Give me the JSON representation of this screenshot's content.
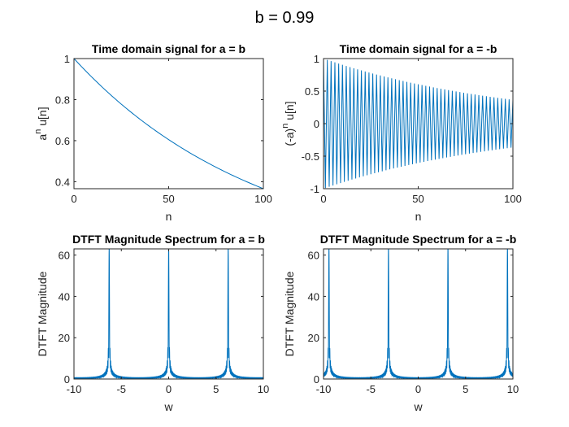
{
  "figure": {
    "title": "b = 0.99",
    "line_color": "#0072BD"
  },
  "chart_data": [
    {
      "type": "line",
      "title": "Time domain signal for a = b",
      "xlabel": "n",
      "ylabel": "a^n u[n]",
      "ylabel_parts": {
        "base": "a",
        "sup": "n",
        "rest": " u[n]"
      },
      "xlim": [
        0,
        100
      ],
      "ylim": [
        0.366,
        1
      ],
      "xticks": [
        0,
        50,
        100
      ],
      "yticks": [
        0.4,
        0.6,
        0.8,
        1
      ],
      "grid": false,
      "series": [
        {
          "formula": "b^n",
          "b": 0.99,
          "x_start": 0,
          "x_end": 100,
          "x_step": 1,
          "sample_values": {
            "0": 1.0,
            "50": 0.605,
            "100": 0.366
          }
        }
      ]
    },
    {
      "type": "line",
      "title": "Time domain signal for a = -b",
      "xlabel": "n",
      "ylabel": "(-a)^n u[n]",
      "ylabel_parts": {
        "base": "(-a)",
        "sup": "n",
        "rest": " u[n]"
      },
      "xlim": [
        0,
        100
      ],
      "ylim": [
        -1,
        1
      ],
      "xticks": [
        0,
        50,
        100
      ],
      "yticks": [
        -1,
        -0.5,
        0,
        0.5,
        1
      ],
      "grid": false,
      "series": [
        {
          "formula": "(-b)^n",
          "b": 0.99,
          "x_start": 0,
          "x_end": 100,
          "x_step": 1,
          "sample_values": {
            "0": 1.0,
            "1": -0.99,
            "50": 0.605,
            "99": -0.37,
            "100": 0.366
          }
        }
      ]
    },
    {
      "type": "line",
      "title": "DTFT Magnitude Spectrum for a = b",
      "xlabel": "w",
      "ylabel": "DTFT Magnitude",
      "xlim": [
        -10,
        10
      ],
      "ylim": [
        0,
        63
      ],
      "xticks": [
        -10,
        -5,
        0,
        5,
        10
      ],
      "yticks": [
        0,
        20,
        40,
        60
      ],
      "grid": false,
      "series": [
        {
          "formula": "|(1-(b e^{-jw})^101)/(1-b e^{-jw})|",
          "b": 0.99,
          "N": 101,
          "x_start": -10,
          "x_end": 10,
          "peaks_at_w": [
            -6.283,
            0,
            6.283
          ],
          "peak_value": 63.4,
          "baseline_value": 0.5
        }
      ]
    },
    {
      "type": "line",
      "title": "DTFT Magnitude Spectrum for a = -b",
      "xlabel": "w",
      "ylabel": "DTFT Magnitude",
      "xlim": [
        -10,
        10
      ],
      "ylim": [
        0,
        63
      ],
      "xticks": [
        -10,
        -5,
        0,
        5,
        10
      ],
      "yticks": [
        0,
        20,
        40,
        60
      ],
      "grid": false,
      "series": [
        {
          "formula": "|(1-(-b e^{-jw})^101)/(1+b e^{-jw})|",
          "b": 0.99,
          "N": 101,
          "x_start": -10,
          "x_end": 10,
          "peaks_at_w": [
            -9.425,
            -3.142,
            3.142,
            9.425
          ],
          "peak_value": 63.4,
          "baseline_value": 0.5
        }
      ]
    }
  ]
}
